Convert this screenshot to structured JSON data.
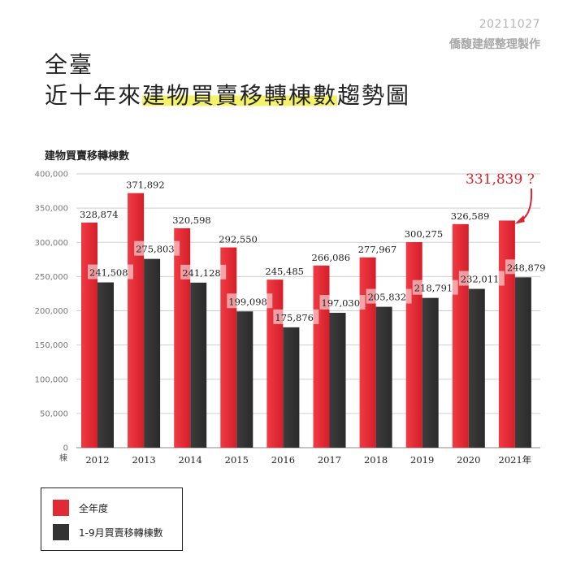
{
  "header": {
    "date": "20211027",
    "source": "僑馥建經整理製作",
    "title_line1": "全臺",
    "title_prefix": "近十年來",
    "title_highlight": "建物買賣移轉棟數",
    "title_suffix": "趨勢圖"
  },
  "chart_data": {
    "type": "bar",
    "title": "建物買賣移轉棟數",
    "ylabel": "棟",
    "xlabel": "",
    "categories": [
      "2012",
      "2013",
      "2014",
      "2015",
      "2016",
      "2017",
      "2018",
      "2019",
      "2020",
      "2021年"
    ],
    "ylim": [
      0,
      400000
    ],
    "yticks": [
      0,
      50000,
      100000,
      150000,
      200000,
      250000,
      300000,
      350000,
      400000
    ],
    "ytick_labels": [
      "0",
      "50,000",
      "100,000",
      "150,000",
      "200,000",
      "250,000",
      "300,000",
      "350,000",
      "400,000"
    ],
    "series": [
      {
        "name": "全年度",
        "color": "#e02b35",
        "values": [
          328874,
          371892,
          320598,
          292550,
          245485,
          266086,
          277967,
          300275,
          326589,
          331839
        ],
        "labels": [
          "328,874",
          "371,892",
          "320,598",
          "292,550",
          "245,485",
          "266,086",
          "277,967",
          "300,275",
          "326,589",
          "331,839 ?"
        ]
      },
      {
        "name": "1-9月買賣移轉棟數",
        "color": "#333333",
        "values": [
          241508,
          275803,
          241128,
          199098,
          175876,
          197030,
          205832,
          218791,
          232011,
          248879
        ],
        "labels": [
          "241,508",
          "275,803",
          "241,128",
          "199,098",
          "175,876",
          "197,030",
          "205,832",
          "218,791",
          "232,011",
          "248,879"
        ]
      }
    ],
    "grid": true,
    "legend_position": "bottom-left",
    "annotation": {
      "category": "2021年",
      "series": "全年度",
      "color": "#d8262d"
    }
  }
}
